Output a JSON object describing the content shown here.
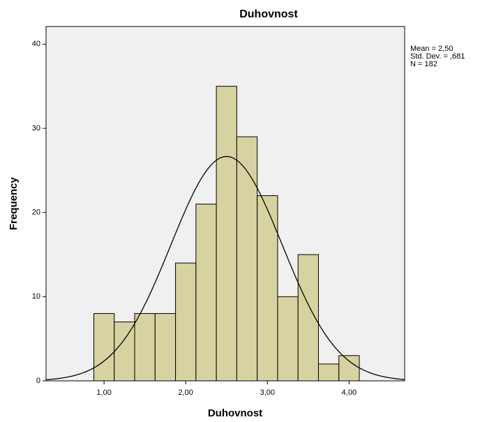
{
  "chart_data": {
    "type": "histogram",
    "title": "Duhovnost",
    "x_label": "Duhovnost",
    "y_label": "Frequency",
    "bins": [
      0.875,
      1.125,
      1.375,
      1.625,
      1.875,
      2.125,
      2.375,
      2.625,
      2.875,
      3.125,
      3.375,
      3.625,
      3.875,
      4.125
    ],
    "values": [
      8,
      7,
      8,
      8,
      14,
      21,
      35,
      29,
      22,
      10,
      15,
      2,
      3
    ],
    "color": "#d7d2a1",
    "xlim": [
      0.29,
      4.68
    ],
    "ylim": [
      0,
      42.1
    ],
    "xticks": [
      {
        "value": 1,
        "label": "1,00"
      },
      {
        "value": 2,
        "label": "2,00"
      },
      {
        "value": 3,
        "label": "3,00"
      },
      {
        "value": 4,
        "label": "4,00"
      }
    ],
    "yticks": [
      0,
      10,
      20,
      30,
      40
    ],
    "normal_curve": {
      "mean": 2.5,
      "sd": 0.681,
      "n": 182
    },
    "stats_labels": [
      "Mean = 2,50",
      "Std. Dev. = ,681",
      "N = 182"
    ]
  }
}
